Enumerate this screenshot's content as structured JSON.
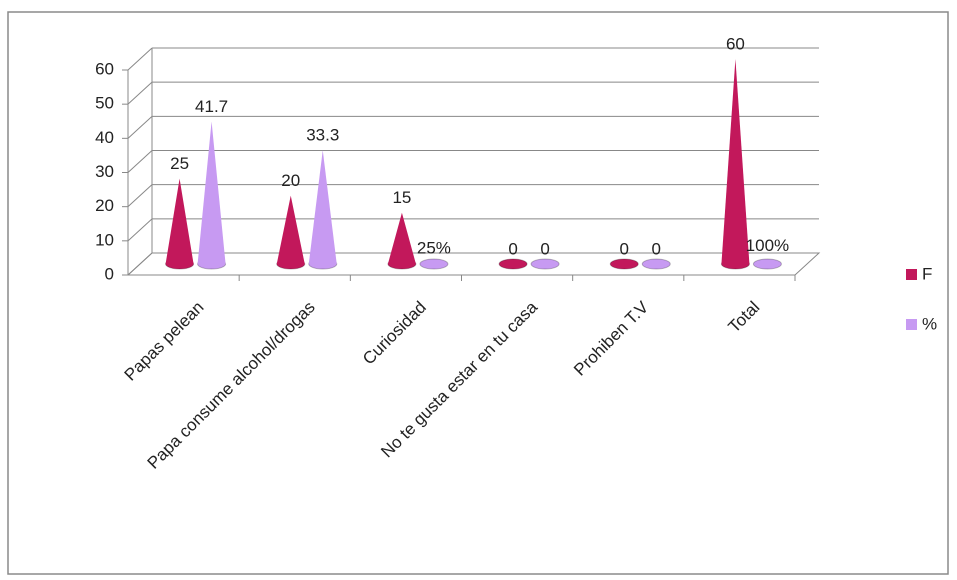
{
  "chart_data": {
    "type": "cone3d",
    "categories": [
      "Papas pelean",
      "Papa consume alcohol/drogas",
      "Curiosidad",
      "No te gusta estar en tu casa",
      "Prohiben T.V",
      "Total"
    ],
    "series": [
      {
        "name": "F",
        "color": "#c2185b",
        "values": [
          25,
          20,
          15,
          0,
          0,
          60
        ]
      },
      {
        "name": "%",
        "color": "#c79af2",
        "values": [
          41.7,
          33.3,
          0.25,
          0,
          0,
          1
        ],
        "value_labels": [
          "41.7",
          "33.3",
          "25%",
          "0",
          "0",
          "100%"
        ]
      }
    ],
    "ylim": [
      0,
      60
    ],
    "yticks": [
      0,
      10,
      20,
      30,
      40,
      50,
      60
    ],
    "grid": true,
    "legend": "right"
  }
}
